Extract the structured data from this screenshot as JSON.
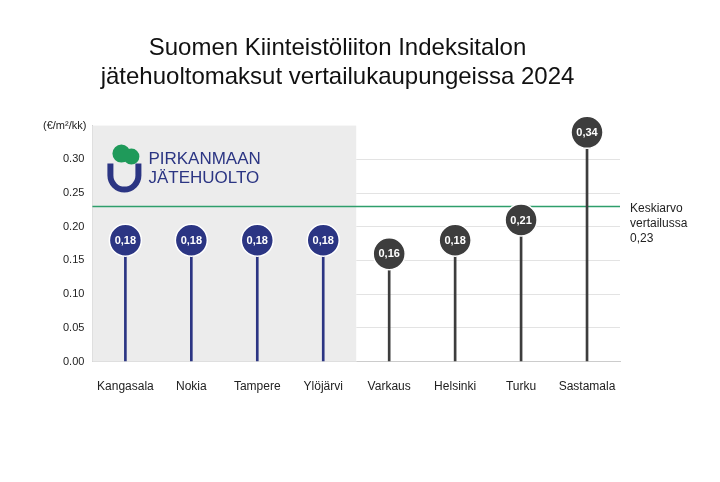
{
  "chart_data": {
    "type": "lollipop",
    "title": [
      "Suomen Kiinteistöliiton Indeksitalon",
      "jätehuoltomaksut vertailukaupungeissa 2024"
    ],
    "y_label": "(€/m²/kk)",
    "categories": [
      "Kangasala",
      "Nokia",
      "Tampere",
      "Ylöjärvi",
      "Varkaus",
      "Helsinki",
      "Turku",
      "Sastamala"
    ],
    "values": [
      0.18,
      0.18,
      0.18,
      0.18,
      0.16,
      0.18,
      0.21,
      0.34
    ],
    "value_labels": [
      "0,18",
      "0,18",
      "0,18",
      "0,18",
      "0,16",
      "0,18",
      "0,21",
      "0,34"
    ],
    "colors": [
      "#2b3583",
      "#2b3583",
      "#2b3583",
      "#2b3583",
      "#3d3d3d",
      "#3d3d3d",
      "#3d3d3d",
      "#3d3d3d"
    ],
    "ylim": [
      0,
      0.35
    ],
    "yticks": [
      {
        "value": 0,
        "label": "0.00"
      },
      {
        "value": 0.05,
        "label": "0.05"
      },
      {
        "value": 0.1,
        "label": "0.10"
      },
      {
        "value": 0.15,
        "label": "0.15"
      },
      {
        "value": 0.2,
        "label": "0.20"
      },
      {
        "value": 0.25,
        "label": "0.25"
      },
      {
        "value": 0.3,
        "label": "0.30"
      }
    ],
    "grid": true,
    "data_labels": true,
    "reference_line": {
      "value": 0.23,
      "label": [
        "Keskiarvo",
        "vertailussa",
        "0,23"
      ],
      "color": "#2e9e6b"
    },
    "highlight_group": {
      "label": [
        "PIRKANMAAN",
        "JÄTEHUOLTO"
      ],
      "categories": [
        "Kangasala",
        "Nokia",
        "Tampere",
        "Ylöjärvi"
      ]
    }
  }
}
